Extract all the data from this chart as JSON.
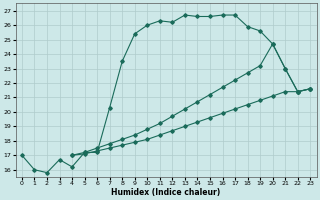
{
  "xlabel": "Humidex (Indice chaleur)",
  "bg_color": "#cde8e8",
  "line_color": "#1a6b5a",
  "grid_color": "#b0cccc",
  "xlim": [
    -0.5,
    23.5
  ],
  "ylim": [
    15.5,
    27.5
  ],
  "xticks": [
    0,
    1,
    2,
    3,
    4,
    5,
    6,
    7,
    8,
    9,
    10,
    11,
    12,
    13,
    14,
    15,
    16,
    17,
    18,
    19,
    20,
    21,
    22,
    23
  ],
  "yticks": [
    16,
    17,
    18,
    19,
    20,
    21,
    22,
    23,
    24,
    25,
    26,
    27
  ],
  "line1_x": [
    0,
    1,
    2,
    3,
    4,
    5,
    6,
    7,
    8,
    9,
    10,
    11,
    12,
    13,
    14,
    15,
    16,
    17,
    18,
    19,
    20,
    21,
    22,
    23
  ],
  "line1_y": [
    17.0,
    16.0,
    15.8,
    16.7,
    16.2,
    17.2,
    17.2,
    20.3,
    23.5,
    25.4,
    26.0,
    26.3,
    26.2,
    26.7,
    26.6,
    26.6,
    26.7,
    26.7,
    25.9,
    25.6,
    24.7,
    23.0,
    21.4,
    21.6
  ],
  "line2_x": [
    4,
    5,
    6,
    7,
    8,
    9,
    10,
    11,
    12,
    13,
    14,
    15,
    16,
    17,
    18,
    19,
    20,
    21,
    22,
    23
  ],
  "line2_y": [
    17.0,
    17.2,
    17.5,
    17.8,
    18.1,
    18.4,
    18.8,
    19.2,
    19.7,
    20.2,
    20.7,
    21.2,
    21.7,
    22.2,
    22.7,
    23.2,
    24.7,
    23.0,
    21.4,
    21.6
  ],
  "line3_x": [
    4,
    5,
    6,
    7,
    8,
    9,
    10,
    11,
    12,
    13,
    14,
    15,
    16,
    17,
    18,
    19,
    20,
    21,
    22,
    23
  ],
  "line3_y": [
    17.0,
    17.1,
    17.3,
    17.5,
    17.7,
    17.9,
    18.1,
    18.4,
    18.7,
    19.0,
    19.3,
    19.6,
    19.9,
    20.2,
    20.5,
    20.8,
    21.1,
    21.4,
    21.4,
    21.6
  ]
}
